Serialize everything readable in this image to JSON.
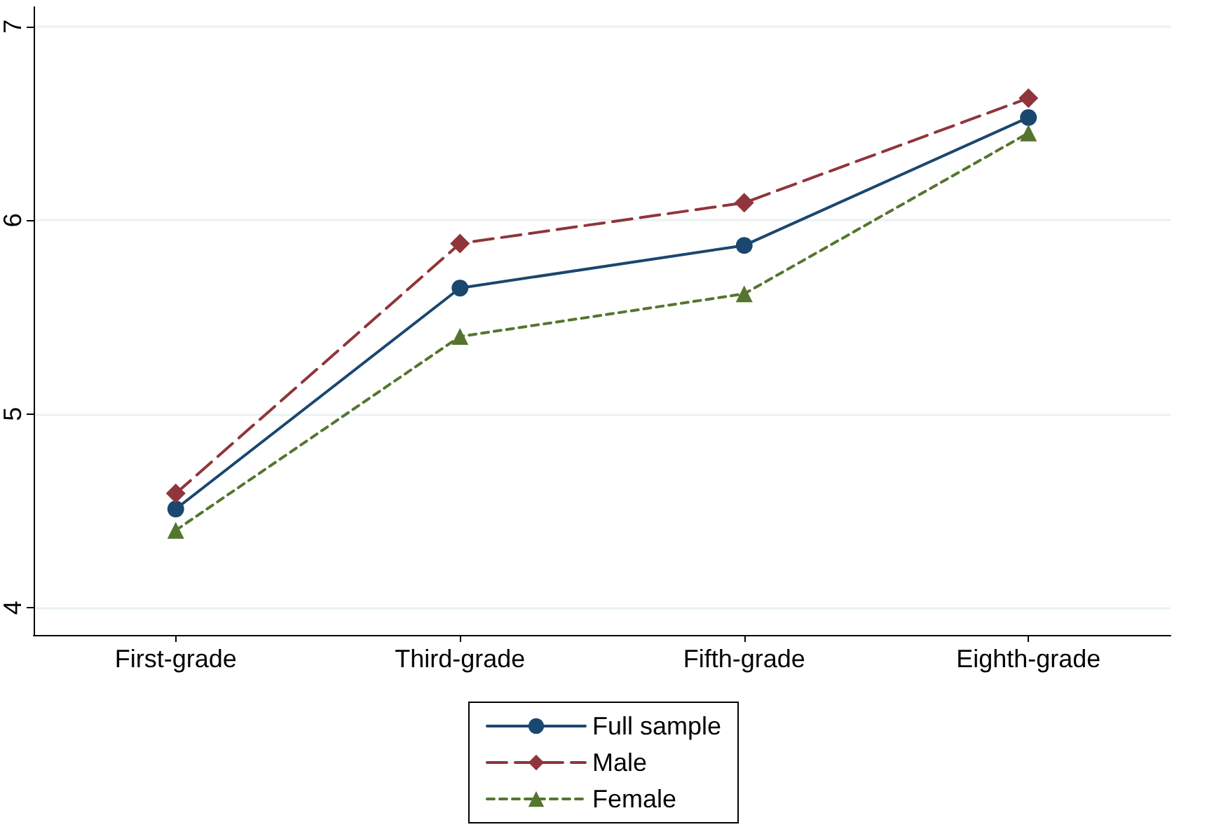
{
  "chart_data": {
    "type": "line",
    "categories": [
      "First-grade",
      "Third-grade",
      "Fifth-grade",
      "Eighth-grade"
    ],
    "ylim": [
      3.86,
      7.1
    ],
    "yticks": [
      4,
      5,
      6,
      7
    ],
    "grid": "y",
    "legend": "bottom",
    "series": [
      {
        "name": "Full sample",
        "color": "#1a476f",
        "values": [
          4.51,
          5.65,
          5.87,
          6.53
        ],
        "marker": "circle",
        "line_style": "solid"
      },
      {
        "name": "Male",
        "color": "#90353b",
        "values": [
          4.59,
          5.88,
          6.09,
          6.63
        ],
        "marker": "diamond",
        "line_style": "dashed"
      },
      {
        "name": "Female",
        "color": "#55752f",
        "values": [
          4.4,
          5.4,
          5.62,
          6.45
        ],
        "marker": "triangle",
        "line_style": "dotted"
      }
    ]
  }
}
